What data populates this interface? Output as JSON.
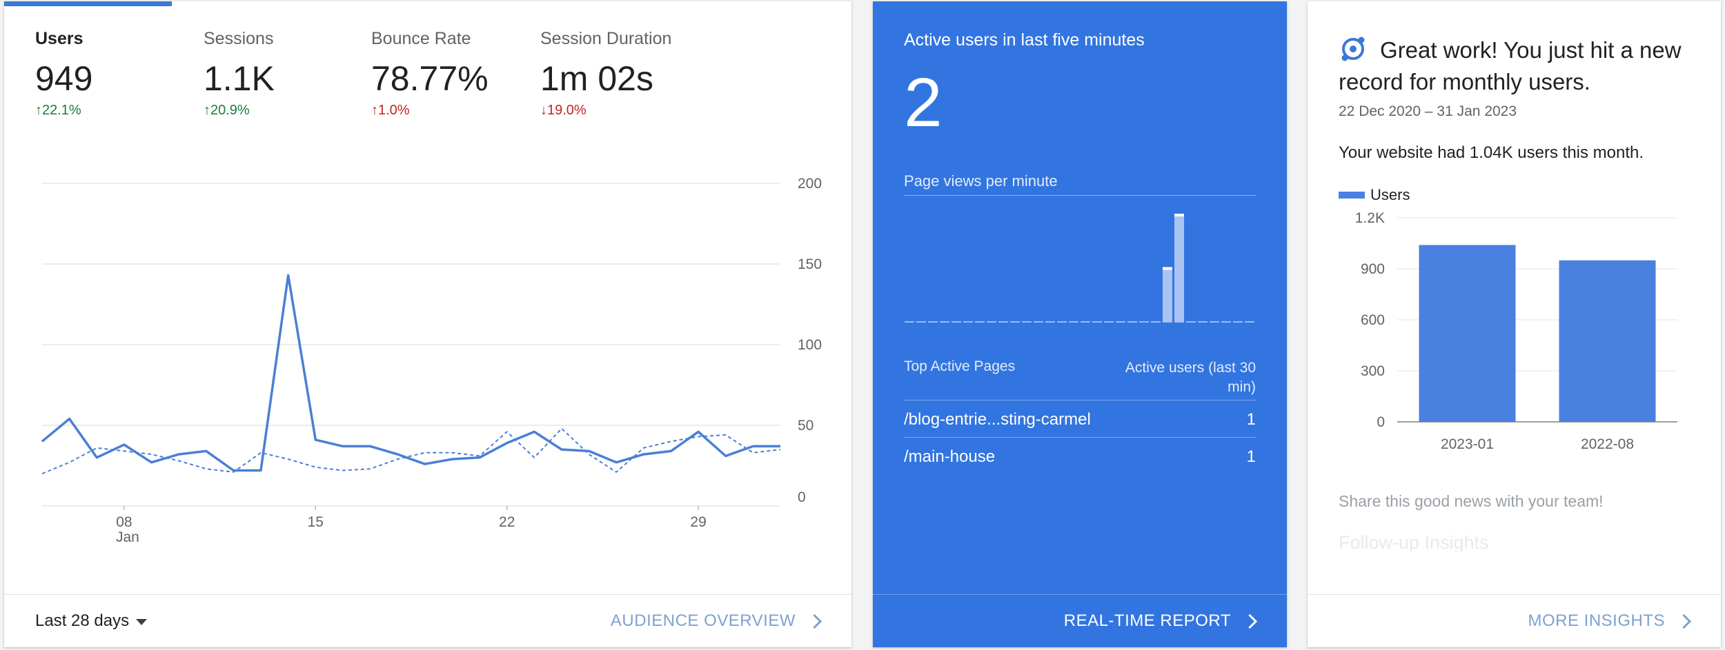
{
  "audience": {
    "metrics": [
      {
        "label": "Users",
        "value": "949",
        "change": "22.1%",
        "direction": "up",
        "sentiment": "good"
      },
      {
        "label": "Sessions",
        "value": "1.1K",
        "change": "20.9%",
        "direction": "up",
        "sentiment": "good"
      },
      {
        "label": "Bounce Rate",
        "value": "78.77%",
        "change": "1.0%",
        "direction": "up",
        "sentiment": "bad"
      },
      {
        "label": "Session Duration",
        "value": "1m 02s",
        "change": "19.0%",
        "direction": "down",
        "sentiment": "bad"
      }
    ],
    "date_range": "Last 28 days",
    "footer_link": "AUDIENCE OVERVIEW"
  },
  "chart_data": [
    {
      "type": "line",
      "x_tick_labels": [
        "08",
        "15",
        "22",
        "29"
      ],
      "x_sublabel": "Jan",
      "y_ticks": [
        "0",
        "50",
        "100",
        "150",
        "200"
      ],
      "ylim": [
        0,
        200
      ],
      "x_start": 5,
      "series": [
        {
          "style": "solid",
          "color": "#4a7fd4",
          "values": [
            40,
            54,
            30,
            38,
            27,
            32,
            34,
            22,
            22,
            143,
            41,
            37,
            37,
            32,
            26,
            29,
            30,
            39,
            46,
            35,
            34,
            27,
            32,
            34,
            46,
            31,
            37,
            37
          ]
        },
        {
          "style": "dashed",
          "color": "#4a7fd4",
          "values": [
            20,
            27,
            36,
            34,
            32,
            28,
            23,
            21,
            33,
            29,
            24,
            22,
            23,
            29,
            33,
            33,
            31,
            46,
            30,
            48,
            32,
            21,
            36,
            40,
            43,
            44,
            33,
            35
          ]
        }
      ]
    },
    {
      "type": "bar",
      "title": "Page views per minute",
      "values": [
        0,
        0,
        0,
        0,
        0,
        0,
        0,
        0,
        0,
        0,
        0,
        0,
        0,
        0,
        0,
        0,
        0,
        0,
        0,
        0,
        0,
        0,
        1,
        2,
        0,
        0,
        0,
        0,
        0,
        0
      ],
      "ylim": [
        0,
        2
      ],
      "color": "#a9c4f2"
    },
    {
      "type": "bar",
      "categories": [
        "2023-01",
        "2022-08"
      ],
      "series": [
        {
          "name": "Users",
          "values": [
            1040,
            950
          ]
        }
      ],
      "y_ticks": [
        "0",
        "300",
        "600",
        "900",
        "1.2K"
      ],
      "ylim": [
        0,
        1200
      ],
      "color": "#4a80e0"
    }
  ],
  "realtime": {
    "title": "Active users in last five minutes",
    "count": "2",
    "pageviews_title": "Page views per minute",
    "table": {
      "header_page": "Top Active Pages",
      "header_users": "Active users (last 30 min)",
      "rows": [
        {
          "page": "/blog-entrie...sting-carmel",
          "users": "1"
        },
        {
          "page": "/main-house",
          "users": "1"
        }
      ]
    },
    "footer_link": "REAL-TIME REPORT"
  },
  "insights": {
    "title": "Great work! You just hit a new record for monthly users.",
    "date_range": "22 Dec 2020 – 31 Jan 2023",
    "text": "Your website had 1.04K users this month.",
    "legend": "Users",
    "share": "Share this good news with your team!",
    "followup": "Follow-up Insights",
    "footer_link": "MORE INSIGHTS"
  },
  "colors": {
    "accent": "#3c78d8",
    "realtime_bg": "#3275e0",
    "good": "#188038",
    "bad": "#c5221f",
    "link": "#7fa1cf"
  }
}
